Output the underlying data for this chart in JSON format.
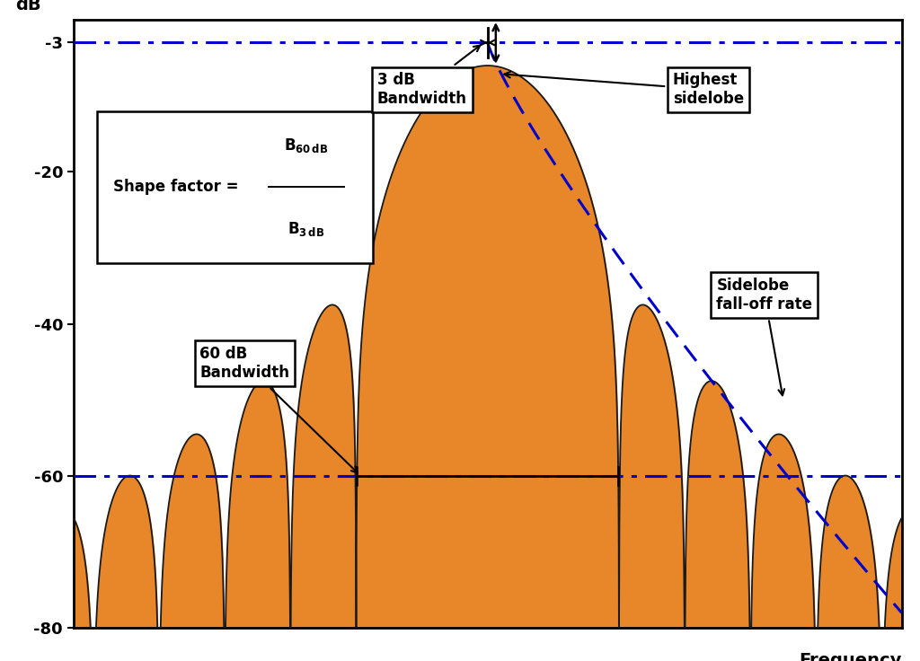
{
  "xlabel": "Frequency",
  "ylabel": "dB",
  "ylim": [
    -80,
    0
  ],
  "xlim": [
    -1.05,
    1.05
  ],
  "yticks": [
    -3,
    -20,
    -40,
    -60,
    -80
  ],
  "db_line_3": -3,
  "db_line_60": -60,
  "fill_color": "#E8872A",
  "fill_edge_color": "#1A1A1A",
  "line_color_dashed": "#0000CC",
  "background_color": "#FFFFFF",
  "text_color": "#000000",
  "text_color_blue": "#0000CC",
  "hanning_scale": 6.0,
  "n_points": 4000
}
